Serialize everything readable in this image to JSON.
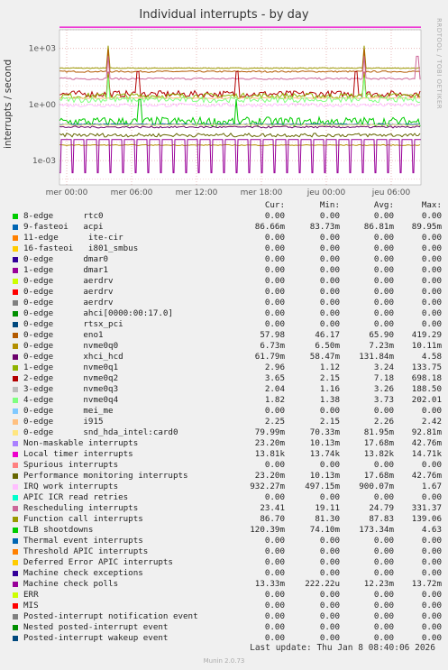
{
  "chart_data": {
    "type": "line",
    "title": "Individual interrupts - by day",
    "ylabel": "interrupts / second",
    "yscale": "log",
    "ylim": [
      5e-05,
      10000
    ],
    "yticks": [
      "1e+03",
      "1e+00",
      "1e-03"
    ],
    "xticks": [
      "mer 00:00",
      "mer 06:00",
      "mer 12:00",
      "mer 18:00",
      "jeu 00:00",
      "jeu 06:00"
    ],
    "grid": true,
    "side_label": "RRDTOOL / TOBI OETIKER",
    "series_levels": [
      {
        "name": "Rescheduling interrupts",
        "color": "#c000c0",
        "values": [
          24.79,
          23.41
        ],
        "cur": 23.41
      },
      {
        "name": "0-edge eno1",
        "color": "#a06000",
        "values": [
          57.98
        ],
        "cur": 57.98
      },
      {
        "name": "9-fasteoi acpi",
        "color": "#0066b3",
        "values": [
          0.0868
        ]
      },
      {
        "name": "Function call interrupts",
        "color": "#8a8a00",
        "values": [
          87.83
        ]
      },
      {
        "name": "0-edge xhci_hcd",
        "color": "#330099",
        "values": [
          0.0618
        ]
      },
      {
        "name": "4-edge nvme0q4",
        "color": "#6ccc3c",
        "values": [
          1.82
        ]
      },
      {
        "name": "2-edge nvme0q2",
        "color": "#cc0000",
        "values": [
          3.65
        ]
      },
      {
        "name": "3-edge nvme0q3",
        "color": "#8fb300",
        "values": [
          2.04
        ]
      },
      {
        "name": "1-edge nvme0q1",
        "color": "#a0a000",
        "values": [
          2.96
        ]
      },
      {
        "name": "8-edge rtc0",
        "color": "#00cc00",
        "values": [
          0.0
        ]
      }
    ],
    "legend_headers": [
      "Cur:",
      "Min:",
      "Avg:",
      "Max:"
    ],
    "legend": [
      {
        "label": "8-edge      rtc0",
        "color": "#00cc00",
        "cur": "0.00",
        "min": "0.00",
        "avg": "0.00",
        "max": "0.00"
      },
      {
        "label": "9-fasteoi   acpi",
        "color": "#0066b3",
        "cur": "86.66m",
        "min": "83.73m",
        "avg": "86.81m",
        "max": "89.95m"
      },
      {
        "label": "11-edge      ite-cir",
        "color": "#ff8000",
        "cur": "0.00",
        "min": "0.00",
        "avg": "0.00",
        "max": "0.00"
      },
      {
        "label": "16-fasteoi   i801_smbus",
        "color": "#ffcc00",
        "cur": "0.00",
        "min": "0.00",
        "avg": "0.00",
        "max": "0.00"
      },
      {
        "label": "0-edge      dmar0",
        "color": "#330099",
        "cur": "0.00",
        "min": "0.00",
        "avg": "0.00",
        "max": "0.00"
      },
      {
        "label": "1-edge      dmar1",
        "color": "#990099",
        "cur": "0.00",
        "min": "0.00",
        "avg": "0.00",
        "max": "0.00"
      },
      {
        "label": "0-edge      aerdrv",
        "color": "#ccff00",
        "cur": "0.00",
        "min": "0.00",
        "avg": "0.00",
        "max": "0.00"
      },
      {
        "label": "0-edge      aerdrv",
        "color": "#ff0000",
        "cur": "0.00",
        "min": "0.00",
        "avg": "0.00",
        "max": "0.00"
      },
      {
        "label": "0-edge      aerdrv",
        "color": "#808080",
        "cur": "0.00",
        "min": "0.00",
        "avg": "0.00",
        "max": "0.00"
      },
      {
        "label": "0-edge      ahci[0000:00:17.0]",
        "color": "#008f00",
        "cur": "0.00",
        "min": "0.00",
        "avg": "0.00",
        "max": "0.00"
      },
      {
        "label": "0-edge      rtsx_pci",
        "color": "#00487d",
        "cur": "0.00",
        "min": "0.00",
        "avg": "0.00",
        "max": "0.00"
      },
      {
        "label": "0-edge      eno1",
        "color": "#b35a00",
        "cur": "57.98",
        "min": "46.17",
        "avg": "65.90",
        "max": "419.29"
      },
      {
        "label": "0-edge      nvme0q0",
        "color": "#b38f00",
        "cur": "6.73m",
        "min": "6.50m",
        "avg": "7.23m",
        "max": "10.11m"
      },
      {
        "label": "0-edge      xhci_hcd",
        "color": "#6b006b",
        "cur": "61.79m",
        "min": "58.47m",
        "avg": "131.84m",
        "max": "4.58"
      },
      {
        "label": "1-edge      nvme0q1",
        "color": "#8fb300",
        "cur": "2.96",
        "min": "1.12",
        "avg": "3.24",
        "max": "133.75"
      },
      {
        "label": "2-edge      nvme0q2",
        "color": "#b30000",
        "cur": "3.65",
        "min": "2.15",
        "avg": "7.18",
        "max": "698.18"
      },
      {
        "label": "3-edge      nvme0q3",
        "color": "#bebebe",
        "cur": "2.04",
        "min": "1.16",
        "avg": "3.26",
        "max": "188.50"
      },
      {
        "label": "4-edge      nvme0q4",
        "color": "#80ff80",
        "cur": "1.82",
        "min": "1.38",
        "avg": "3.73",
        "max": "202.01"
      },
      {
        "label": "0-edge      mei_me",
        "color": "#80c9ff",
        "cur": "0.00",
        "min": "0.00",
        "avg": "0.00",
        "max": "0.00"
      },
      {
        "label": "0-edge      i915",
        "color": "#ffc080",
        "cur": "2.25",
        "min": "2.15",
        "avg": "2.26",
        "max": "2.42"
      },
      {
        "label": "0-edge      snd_hda_intel:card0",
        "color": "#ffe680",
        "cur": "79.99m",
        "min": "70.33m",
        "avg": "81.95m",
        "max": "92.81m"
      },
      {
        "label": "Non-maskable interrupts",
        "color": "#aa80ff",
        "cur": "23.20m",
        "min": "10.13m",
        "avg": "17.68m",
        "max": "42.76m"
      },
      {
        "label": "Local timer interrupts",
        "color": "#ee00cc",
        "cur": "13.81k",
        "min": "13.74k",
        "avg": "13.82k",
        "max": "14.71k"
      },
      {
        "label": "Spurious interrupts",
        "color": "#ff8080",
        "cur": "0.00",
        "min": "0.00",
        "avg": "0.00",
        "max": "0.00"
      },
      {
        "label": "Performance monitoring interrupts",
        "color": "#666600",
        "cur": "23.20m",
        "min": "10.13m",
        "avg": "17.68m",
        "max": "42.76m"
      },
      {
        "label": "IRQ work interrupts",
        "color": "#ffbfff",
        "cur": "932.27m",
        "min": "497.15m",
        "avg": "900.07m",
        "max": "1.67"
      },
      {
        "label": "APIC ICR read retries",
        "color": "#00ffcc",
        "cur": "0.00",
        "min": "0.00",
        "avg": "0.00",
        "max": "0.00"
      },
      {
        "label": "Rescheduling interrupts",
        "color": "#cc6699",
        "cur": "23.41",
        "min": "19.11",
        "avg": "24.79",
        "max": "331.37"
      },
      {
        "label": "Function call interrupts",
        "color": "#999900",
        "cur": "86.70",
        "min": "81.30",
        "avg": "87.83",
        "max": "139.06"
      },
      {
        "label": "TLB shootdowns",
        "color": "#00cc00",
        "cur": "120.39m",
        "min": "74.10m",
        "avg": "173.34m",
        "max": "4.63"
      },
      {
        "label": "Thermal event interrupts",
        "color": "#0066b3",
        "cur": "0.00",
        "min": "0.00",
        "avg": "0.00",
        "max": "0.00"
      },
      {
        "label": "Threshold APIC interrupts",
        "color": "#ff8000",
        "cur": "0.00",
        "min": "0.00",
        "avg": "0.00",
        "max": "0.00"
      },
      {
        "label": "Deferred Error APIC interrupts",
        "color": "#ffcc00",
        "cur": "0.00",
        "min": "0.00",
        "avg": "0.00",
        "max": "0.00"
      },
      {
        "label": "Machine check exceptions",
        "color": "#330099",
        "cur": "0.00",
        "min": "0.00",
        "avg": "0.00",
        "max": "0.00"
      },
      {
        "label": "Machine check polls",
        "color": "#990099",
        "cur": "13.33m",
        "min": "222.22u",
        "avg": "12.23m",
        "max": "13.72m"
      },
      {
        "label": "ERR",
        "color": "#ccff00",
        "cur": "0.00",
        "min": "0.00",
        "avg": "0.00",
        "max": "0.00"
      },
      {
        "label": "MIS",
        "color": "#ff0000",
        "cur": "0.00",
        "min": "0.00",
        "avg": "0.00",
        "max": "0.00"
      },
      {
        "label": "Posted-interrupt notification event",
        "color": "#808080",
        "cur": "0.00",
        "min": "0.00",
        "avg": "0.00",
        "max": "0.00"
      },
      {
        "label": "Nested posted-interrupt event",
        "color": "#008f00",
        "cur": "0.00",
        "min": "0.00",
        "avg": "0.00",
        "max": "0.00"
      },
      {
        "label": "Posted-interrupt wakeup event",
        "color": "#00487d",
        "cur": "0.00",
        "min": "0.00",
        "avg": "0.00",
        "max": "0.00"
      }
    ]
  },
  "last_update": "Last update:  Thu Jan  8 08:40:06 2026",
  "footer": "Munin 2.0.73"
}
